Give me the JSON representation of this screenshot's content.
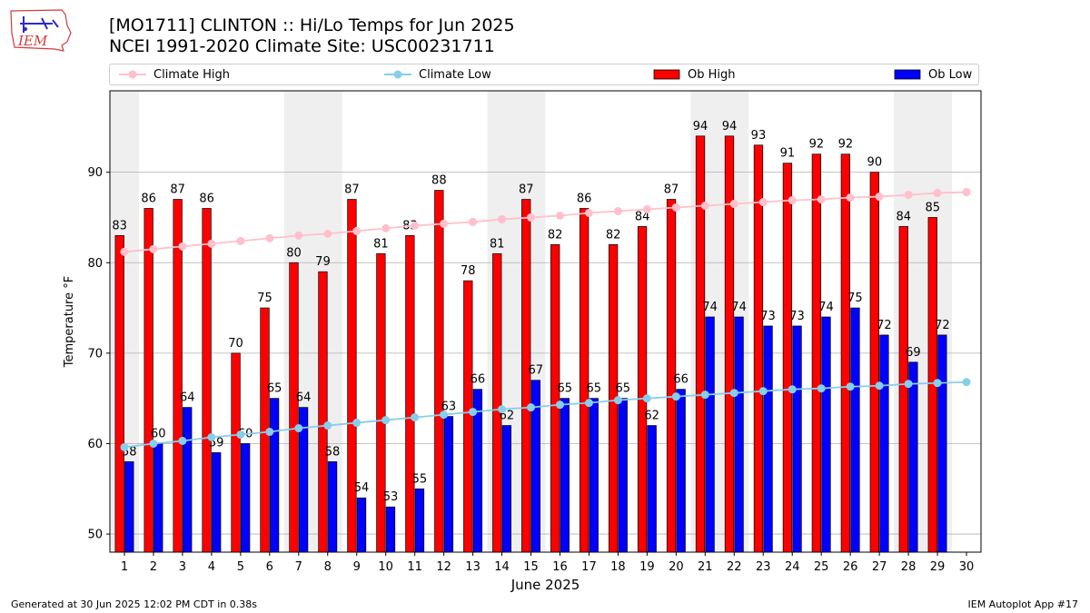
{
  "header": {
    "title_line1": "[MO1711] CLINTON :: Hi/Lo Temps for Jun 2025",
    "title_line2": "NCEI 1991-2020 Climate Site: USC00231711",
    "logo_text": "IEM"
  },
  "footer": {
    "generated": "Generated at 30 Jun 2025 12:02 PM CDT in 0.38s",
    "app": "IEM Autoplot App #17"
  },
  "chart_data": {
    "type": "bar",
    "xlabel": "June 2025",
    "ylabel": "Temperature °F",
    "ylim": [
      48,
      99
    ],
    "yticks": [
      50,
      60,
      70,
      80,
      90
    ],
    "grid": true,
    "legend_position": "top",
    "days": [
      1,
      2,
      3,
      4,
      5,
      6,
      7,
      8,
      9,
      10,
      11,
      12,
      13,
      14,
      15,
      16,
      17,
      18,
      19,
      20,
      21,
      22,
      23,
      24,
      25,
      26,
      27,
      28,
      29,
      30
    ],
    "weekend_shading": [
      [
        1,
        1
      ],
      [
        7,
        8
      ],
      [
        14,
        15
      ],
      [
        21,
        22
      ],
      [
        28,
        29
      ]
    ],
    "series": [
      {
        "name": "Ob High",
        "type": "bar",
        "color": "#ff0000",
        "values": [
          83,
          86,
          87,
          86,
          70,
          75,
          80,
          79,
          87,
          81,
          83,
          88,
          78,
          81,
          87,
          82,
          86,
          82,
          84,
          87,
          94,
          94,
          93,
          91,
          92,
          92,
          90,
          84,
          85
        ]
      },
      {
        "name": "Ob Low",
        "type": "bar",
        "color": "#0000ff",
        "values": [
          58,
          60,
          64,
          59,
          60,
          65,
          64,
          58,
          54,
          53,
          55,
          63,
          66,
          62,
          67,
          65,
          65,
          65,
          62,
          66,
          74,
          74,
          73,
          73,
          74,
          75,
          72,
          69,
          72
        ]
      },
      {
        "name": "Climate High",
        "type": "line",
        "color": "#ffc0cb",
        "values": [
          81.2,
          81.5,
          81.8,
          82.1,
          82.4,
          82.7,
          83.0,
          83.2,
          83.5,
          83.8,
          84.1,
          84.3,
          84.5,
          84.8,
          85.0,
          85.2,
          85.5,
          85.7,
          85.9,
          86.1,
          86.3,
          86.5,
          86.7,
          86.9,
          87.0,
          87.2,
          87.3,
          87.5,
          87.7,
          87.8
        ]
      },
      {
        "name": "Climate Low",
        "type": "line",
        "color": "#87ceeb",
        "values": [
          59.6,
          60.0,
          60.3,
          60.7,
          61.0,
          61.3,
          61.7,
          62.0,
          62.3,
          62.6,
          62.9,
          63.2,
          63.5,
          63.8,
          64.0,
          64.3,
          64.5,
          64.8,
          65.0,
          65.2,
          65.4,
          65.6,
          65.8,
          66.0,
          66.1,
          66.3,
          66.4,
          66.6,
          66.7,
          66.8
        ]
      }
    ]
  }
}
